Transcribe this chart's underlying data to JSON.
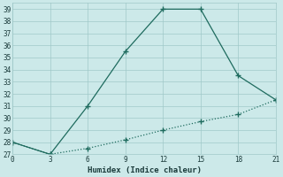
{
  "xlabel": "Humidex (Indice chaleur)",
  "line1_x": [
    0,
    3,
    6,
    9,
    12,
    15,
    18,
    21
  ],
  "line1_y": [
    28,
    27,
    31,
    35.5,
    39,
    39,
    33.5,
    31.5
  ],
  "line2_x": [
    0,
    3,
    6,
    9,
    12,
    15,
    18,
    21
  ],
  "line2_y": [
    28,
    27,
    27.5,
    28.2,
    29.0,
    29.7,
    30.3,
    31.5
  ],
  "line_color": "#1e6b5e",
  "xlim": [
    0,
    21
  ],
  "ylim": [
    27,
    39.5
  ],
  "yticks": [
    27,
    28,
    29,
    30,
    31,
    32,
    33,
    34,
    35,
    36,
    37,
    38,
    39
  ],
  "xticks": [
    0,
    3,
    6,
    9,
    12,
    15,
    18,
    21
  ],
  "bg_color": "#cce9e9",
  "grid_color": "#a0c8c8"
}
